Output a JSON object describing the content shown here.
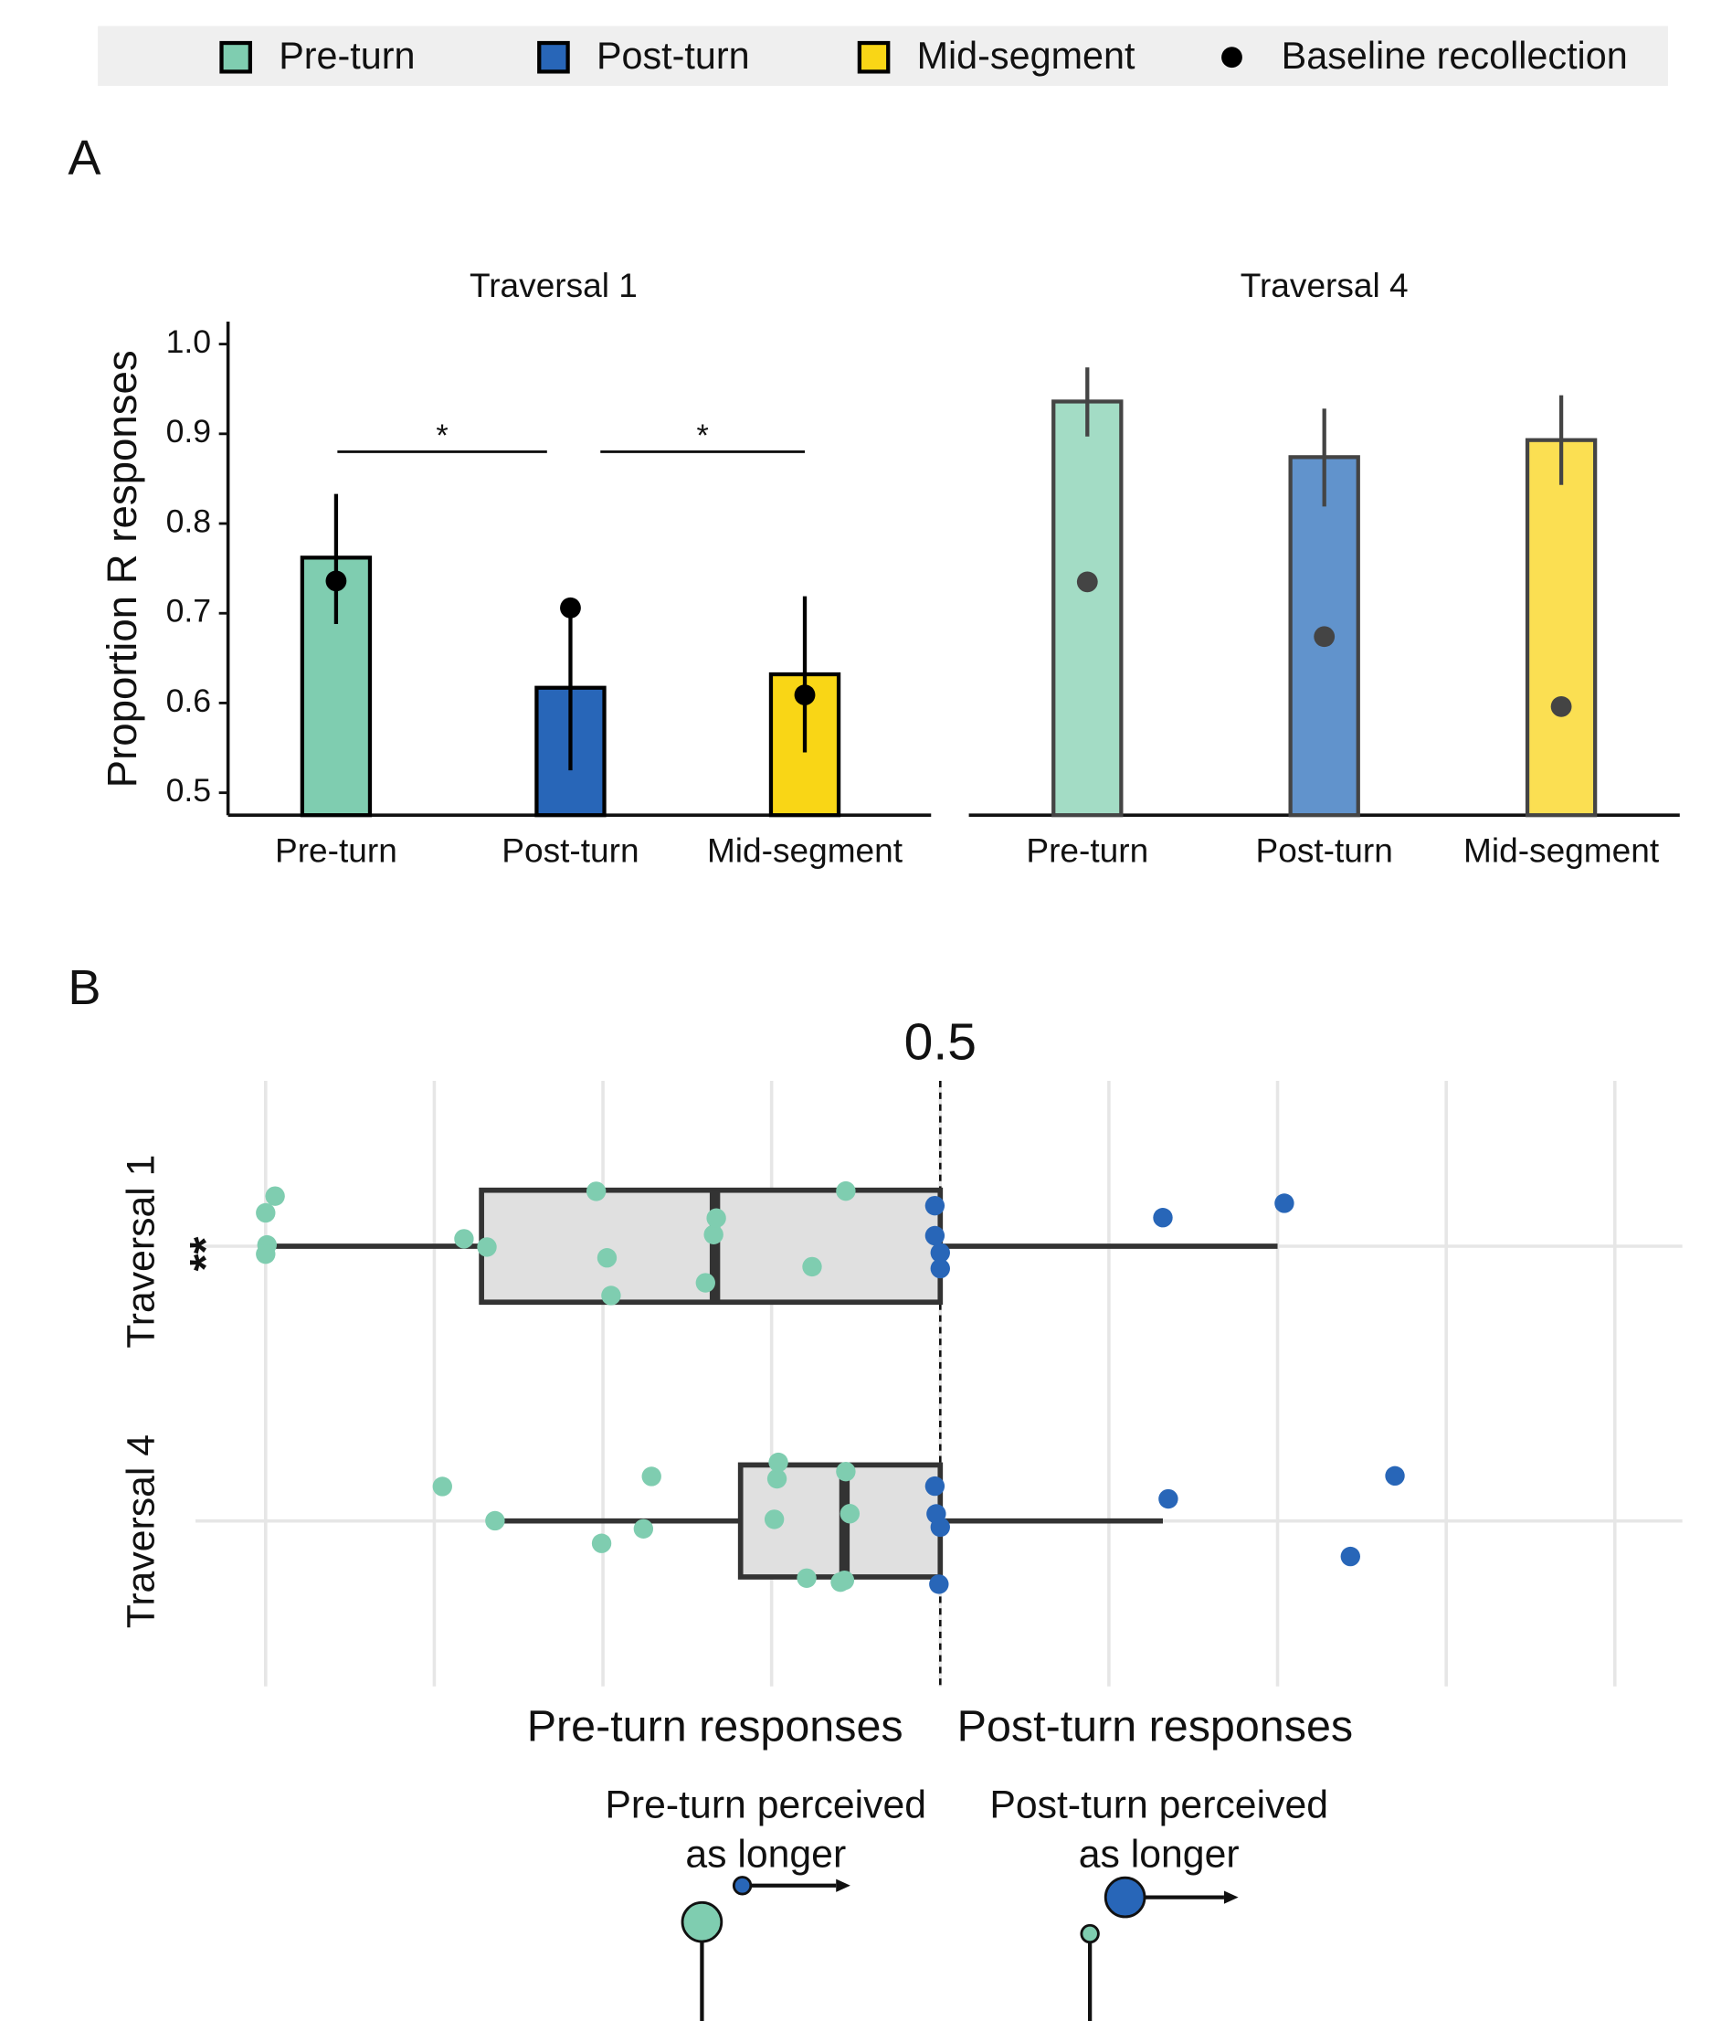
{
  "legend": [
    {
      "name": "Pre-turn",
      "color": "#7fcdb0",
      "shape": "square"
    },
    {
      "name": "Post-turn",
      "color": "#2866b8",
      "shape": "square"
    },
    {
      "name": "Mid-segment",
      "color": "#f9d616",
      "shape": "square"
    },
    {
      "name": "Baseline recollection",
      "color": "#000000",
      "shape": "circle"
    }
  ],
  "chart_data": [
    {
      "type": "bar",
      "panel_label": "A",
      "ylabel": "Proportion R responses",
      "ylim": [
        0.475,
        1.025
      ],
      "yticks": [
        0.5,
        0.6,
        0.7,
        0.8,
        0.9,
        {
          "value": 1,
          "label": "1.0"
        }
      ],
      "categories": [
        "Pre-turn",
        "Post-turn",
        "Mid-segment"
      ],
      "facets": [
        {
          "title": "Traversal 1",
          "colors": [
            "#7fcdb0",
            "#2866b8",
            "#f9d616"
          ],
          "edge_color": "#000000",
          "values": [
            0.762,
            0.617,
            0.632
          ],
          "err_low": [
            0.688,
            0.525,
            0.545
          ],
          "err_high": [
            0.833,
            0.709,
            0.719
          ],
          "baseline": [
            0.736,
            0.706,
            0.609
          ],
          "baseline_color": "#000000",
          "significance": [
            {
              "label": "*",
              "pair": [
                "Pre-turn",
                "Post-turn"
              ]
            },
            {
              "label": "*",
              "pair": [
                "Post-turn",
                "Mid-segment"
              ]
            }
          ]
        },
        {
          "title": "Traversal 4",
          "colors": [
            "#a3dcc5",
            "#6193cc",
            "#fbdf52"
          ],
          "edge_color": "#444444",
          "values": [
            0.936,
            0.874,
            0.893
          ],
          "err_low": [
            0.897,
            0.819,
            0.843
          ],
          "err_high": [
            0.974,
            0.928,
            0.943
          ],
          "baseline": [
            0.735,
            0.674,
            0.596
          ],
          "baseline_color": "#444444",
          "significance": []
        }
      ]
    },
    {
      "type": "box",
      "panel_label": "B",
      "categories": [
        "Traversal 1",
        "Traversal 4"
      ],
      "category_annotations": [
        "**",
        null
      ],
      "xlim": [
        -0.052,
        1.05
      ],
      "xticks": [
        0.5
      ],
      "grid_x": [
        0,
        0.125,
        0.25,
        0.375,
        0.5,
        0.625,
        0.75,
        0.875,
        1
      ],
      "reference_line": 0.5,
      "boxes": [
        {
          "whisker_low": 0,
          "q1": 0.16,
          "median": 0.333,
          "q3": 0.5,
          "whisker_high": 0.75
        },
        {
          "whisker_low": 0.168,
          "q1": 0.352,
          "median": 0.429,
          "q3": 0.5,
          "whisker_high": 0.665
        }
      ],
      "series": [
        {
          "name": "Pre-turn responses",
          "color": "#7fcdb0",
          "points": [
            [
              0.001,
              0,
              0.007,
              0,
              0.147,
              0.164,
              0.245,
              0.256,
              0.253,
              0.332,
              0.334,
              0.326,
              0.405,
              0.43
            ],
            [
              0.17,
              0.131,
              0.249,
              0.286,
              0.28,
              0.377,
              0.379,
              0.38,
              0.401,
              0.426,
              0.43,
              0.433,
              0.429
            ]
          ]
        },
        {
          "name": "Post-turn responses",
          "color": "#2866b8",
          "points": [
            [
              0.496,
              0.496,
              0.5,
              0.5,
              0.665,
              0.755
            ],
            [
              0.499,
              0.497,
              0.496,
              0.5,
              0.669,
              0.837,
              0.804
            ]
          ]
        }
      ],
      "notes": [
        {
          "lines": [
            "Pre-turn perceived",
            "as longer"
          ]
        },
        {
          "lines": [
            "Post-turn perceived",
            "as longer"
          ]
        }
      ]
    }
  ]
}
